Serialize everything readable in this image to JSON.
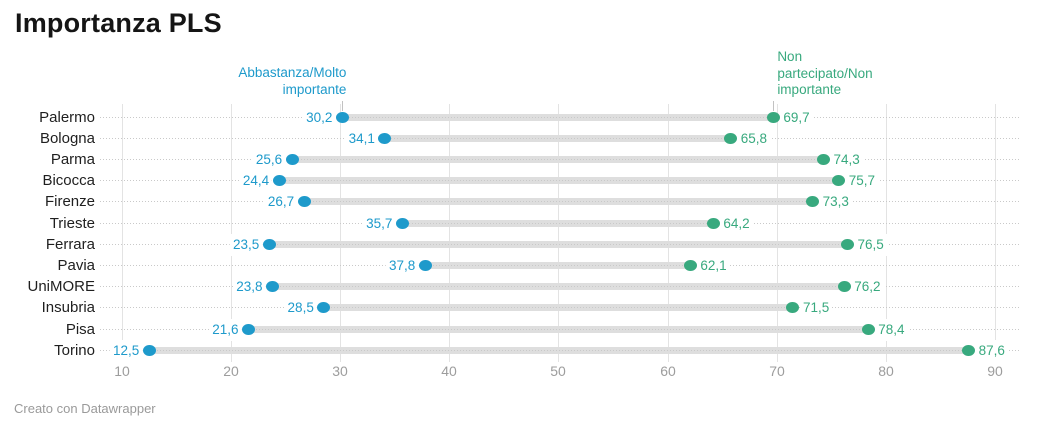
{
  "chart_data": {
    "type": "dumbbell",
    "title": "Importanza PLS",
    "categories": [
      "Palermo",
      "Bologna",
      "Parma",
      "Bicocca",
      "Firenze",
      "Trieste",
      "Ferrara",
      "Pavia",
      "UniMORE",
      "Insubria",
      "Pisa",
      "Torino"
    ],
    "series": [
      {
        "name": "Abbastanza/Molto importante",
        "color": "#1e9acb",
        "values": [
          30.2,
          34.1,
          25.6,
          24.4,
          26.7,
          35.7,
          23.5,
          37.8,
          23.8,
          28.5,
          21.6,
          12.5
        ]
      },
      {
        "name": "Non partecipato/Non importante",
        "color": "#38a97e",
        "values": [
          69.7,
          65.8,
          74.3,
          75.7,
          73.3,
          64.2,
          76.5,
          62.1,
          76.2,
          71.5,
          78.4,
          87.6
        ]
      }
    ],
    "xticks": [
      10,
      20,
      30,
      40,
      50,
      60,
      70,
      80,
      90
    ],
    "xlim": [
      7,
      94
    ],
    "legend_position": "top, pointing to first row dots",
    "grid": "vertical solid gridlines at each tick; dotted horizontal guide per row",
    "value_label_decimal_separator": ","
  },
  "series_labels": {
    "importante": "Abbastanza/Molto\nimportante",
    "non_importante": "Non\npartecipato/Non\nimportante"
  },
  "footer": {
    "text": "Creato con Datawrapper"
  },
  "colors": {
    "importante": "#1e9acb",
    "non_importante": "#38a97e",
    "bar": "#dedede",
    "gridline": "#e3e3e3",
    "dotted_guide": "#c9c9c9",
    "row_label": "#1f1f1f",
    "axis_label": "#9d9d9d",
    "title": "#151515",
    "footer": "#9a9a9a",
    "background": "#ffffff"
  }
}
